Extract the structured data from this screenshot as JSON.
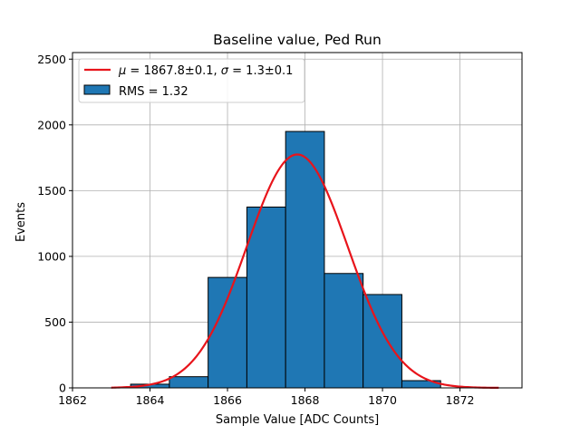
{
  "chart_data": {
    "type": "bar",
    "title": "Baseline value, Ped Run",
    "xlabel": "Sample Value [ADC Counts]",
    "ylabel": "Events",
    "xlim": [
      1862,
      1873.6
    ],
    "ylim": [
      0,
      2550
    ],
    "xticks": [
      1862,
      1864,
      1866,
      1868,
      1870,
      1872
    ],
    "yticks": [
      0,
      500,
      1000,
      1500,
      2000,
      2500
    ],
    "grid": true,
    "legend_position": "top-left",
    "bin_edges": [
      1863.5,
      1864.5,
      1865.5,
      1866.5,
      1867.5,
      1868.5,
      1869.5,
      1870.5,
      1871.5
    ],
    "values": [
      28,
      85,
      840,
      1375,
      1950,
      870,
      710,
      55
    ],
    "histogram": {
      "color": "#1f77b4",
      "edge_color": "#000000",
      "legend": "RMS = 1.32"
    },
    "fit": {
      "type": "gaussian",
      "color": "#e8141b",
      "mean": 1867.8,
      "sigma": 1.3,
      "peak": 1775,
      "x_range": [
        1863,
        1873
      ],
      "legend_prefix": "μ",
      "legend_mu": " = 1867.8±0.1, ",
      "legend_sigma_symbol": "σ",
      "legend_sigma": " = 1.3±0.1"
    }
  }
}
